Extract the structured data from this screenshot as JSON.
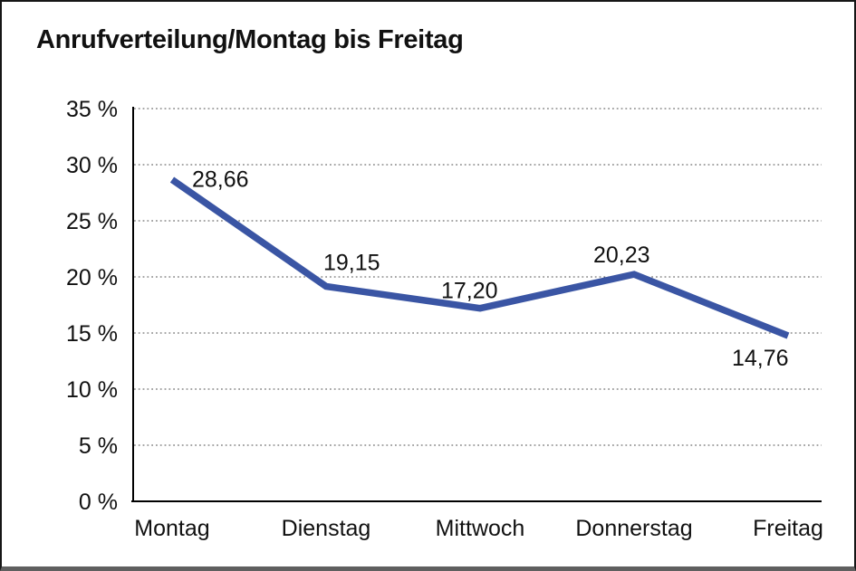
{
  "window": {
    "background_color": "#ffffff",
    "frame_border_color": "#161616",
    "frame_bottom_color": "#5f5f5f"
  },
  "chart_data": {
    "type": "line",
    "title": "Anrufverteilung/Montag bis Freitag",
    "categories": [
      "Montag",
      "Dienstag",
      "Mittwoch",
      "Donnerstag",
      "Freitag"
    ],
    "series": [
      {
        "name": "Anrufverteilung",
        "values": [
          28.66,
          19.15,
          17.2,
          20.23,
          14.76
        ]
      }
    ],
    "value_labels": [
      "28,66",
      "19,15",
      "17,20",
      "20,23",
      "14,76"
    ],
    "xlabel": "",
    "ylabel": "",
    "ylim": [
      0,
      35
    ],
    "yticks": [
      0,
      5,
      10,
      15,
      20,
      25,
      30,
      35
    ],
    "ytick_labels": [
      "0 %",
      "5 %",
      "10 %",
      "15 %",
      "20 %",
      "25 %",
      "30 %",
      "35 %"
    ],
    "grid": "horizontal-dotted",
    "legend": "none",
    "line_color": "#3A55A4",
    "axis_color": "#000000",
    "text_color": "#111111"
  }
}
